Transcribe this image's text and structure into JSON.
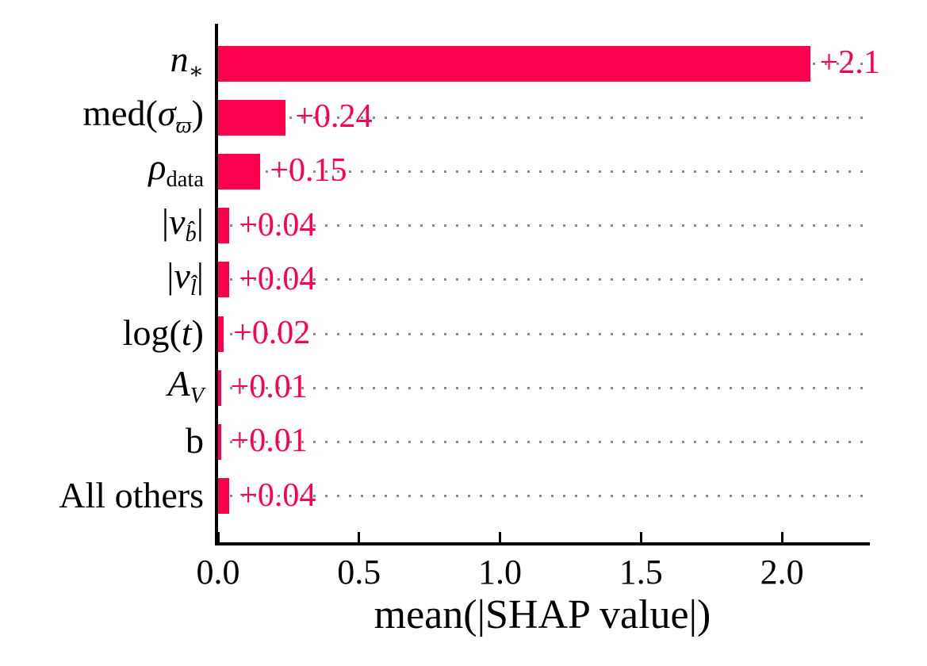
{
  "chart_data": {
    "type": "bar",
    "orientation": "horizontal",
    "title": "",
    "xlabel": "mean(|SHAP value|)",
    "ylabel": "",
    "bar_color": "#ff0051",
    "axis_color": "#000000",
    "gridline_color": "#8a8a8a",
    "gridline_style": "dotted-horizontal",
    "legend": "none",
    "xlim": [
      0,
      2.312
    ],
    "x_ticks": [
      {
        "value": 0.0,
        "label": "0.0"
      },
      {
        "value": 0.5,
        "label": "0.5"
      },
      {
        "value": 1.0,
        "label": "1.0"
      },
      {
        "value": 1.5,
        "label": "1.5"
      },
      {
        "value": 2.0,
        "label": "2.0"
      }
    ],
    "categories": [
      "n_*",
      "med(σ_ϖ)",
      "ρ_data",
      "|v_b̂|",
      "|v_l̂|",
      "log(t)",
      "A_V",
      "b",
      "All others"
    ],
    "values": [
      2.1,
      0.24,
      0.15,
      0.04,
      0.04,
      0.02,
      0.01,
      0.01,
      0.04
    ],
    "value_labels": [
      "+2.1",
      "+0.24",
      "+0.15",
      "+0.04",
      "+0.04",
      "+0.02",
      "+0.01",
      "+0.01",
      "+0.04"
    ],
    "categories_rich": [
      [
        {
          "t": "n",
          "it": true
        },
        {
          "t": "∗",
          "sub": true
        }
      ],
      [
        {
          "t": "med("
        },
        {
          "t": "σ",
          "it": true
        },
        {
          "t": "ϖ",
          "it": true,
          "sub": true
        },
        {
          "t": ")"
        }
      ],
      [
        {
          "t": "ρ",
          "it": true
        },
        {
          "t": "data",
          "sub": true
        }
      ],
      [
        {
          "t": "|"
        },
        {
          "t": "v",
          "it": true
        },
        {
          "t": "b̂",
          "it": true,
          "sub": true
        },
        {
          "t": "|"
        }
      ],
      [
        {
          "t": "|"
        },
        {
          "t": "v",
          "it": true
        },
        {
          "t": "l̂",
          "it": true,
          "sub": true
        },
        {
          "t": "|"
        }
      ],
      [
        {
          "t": "log("
        },
        {
          "t": "t",
          "it": true
        },
        {
          "t": ")"
        }
      ],
      [
        {
          "t": "A",
          "it": true
        },
        {
          "t": "V",
          "it": true,
          "sub": true
        }
      ],
      [
        {
          "t": "b"
        }
      ],
      [
        {
          "t": "All others"
        }
      ]
    ]
  }
}
